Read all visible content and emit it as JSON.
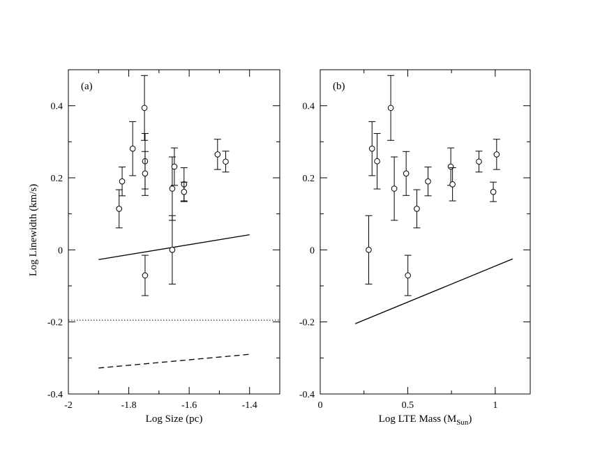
{
  "figure": {
    "ylabel": "Log Linewidth (km/s)"
  },
  "chart_data": [
    {
      "type": "scatter",
      "panel_label": "(a)",
      "xlabel": "Log Size (pc)",
      "ylabel": "Log Linewidth (km/s)",
      "xlim": [
        -2.0,
        -1.3
      ],
      "ylim": [
        -0.4,
        0.5
      ],
      "xticks": [
        -2.0,
        -1.8,
        -1.6,
        -1.4
      ],
      "xtick_labels": [
        "-2",
        "-1.8",
        "-1.6",
        "-1.4"
      ],
      "yticks": [
        -0.4,
        -0.2,
        0.0,
        0.2,
        0.4
      ],
      "ytick_labels": [
        "-0.4",
        "-0.2",
        "0",
        "0.2",
        "0.4"
      ],
      "grid": false,
      "points": [
        {
          "x": -1.832,
          "y": 0.114,
          "err": 0.053
        },
        {
          "x": -1.822,
          "y": 0.19,
          "err": 0.04
        },
        {
          "x": -1.787,
          "y": 0.281,
          "err": 0.075
        },
        {
          "x": -1.748,
          "y": 0.394,
          "err": 0.09
        },
        {
          "x": -1.746,
          "y": 0.246,
          "err": 0.077
        },
        {
          "x": -1.746,
          "y": 0.212,
          "err": 0.061
        },
        {
          "x": -1.746,
          "y": -0.071,
          "err": 0.056
        },
        {
          "x": -1.656,
          "y": 0.17,
          "err": 0.088
        },
        {
          "x": -1.649,
          "y": 0.231,
          "err": 0.052
        },
        {
          "x": -1.656,
          "y": 0.0,
          "err": 0.095
        },
        {
          "x": -1.617,
          "y": 0.182,
          "err": 0.046
        },
        {
          "x": -1.617,
          "y": 0.161,
          "err": 0.027
        },
        {
          "x": -1.506,
          "y": 0.265,
          "err": 0.042
        },
        {
          "x": -1.479,
          "y": 0.245,
          "err": 0.029
        }
      ],
      "lines": [
        {
          "name": "solid fit",
          "style": "solid",
          "x": [
            -1.9,
            -1.4
          ],
          "y": [
            -0.027,
            0.042
          ]
        },
        {
          "name": "dotted reference",
          "style": "dotted",
          "x": [
            -2.0,
            -1.3
          ],
          "y": [
            -0.195,
            -0.195
          ]
        },
        {
          "name": "dashed relation",
          "style": "dashed",
          "x": [
            -1.9,
            -1.4
          ],
          "y": [
            -0.328,
            -0.29
          ]
        }
      ]
    },
    {
      "type": "scatter",
      "panel_label": "(b)",
      "xlabel": "Log LTE Mass (M",
      "xlabel_subscript": "Sun",
      "xlabel_suffix": ")",
      "ylabel": "Log Linewidth (km/s)",
      "xlim": [
        0.0,
        1.2
      ],
      "ylim": [
        -0.4,
        0.5
      ],
      "xticks": [
        0.0,
        0.5,
        1.0
      ],
      "xtick_labels": [
        "0",
        "0.5",
        "1"
      ],
      "yticks": [
        -0.4,
        -0.2,
        0.0,
        0.2,
        0.4
      ],
      "ytick_labels": [
        "-0.4",
        "-0.2",
        "0",
        "0.2",
        "0.4"
      ],
      "grid": false,
      "points": [
        {
          "x": 0.277,
          "y": 0.0,
          "err": 0.095
        },
        {
          "x": 0.296,
          "y": 0.281,
          "err": 0.075
        },
        {
          "x": 0.325,
          "y": 0.246,
          "err": 0.077
        },
        {
          "x": 0.403,
          "y": 0.394,
          "err": 0.09
        },
        {
          "x": 0.423,
          "y": 0.17,
          "err": 0.088
        },
        {
          "x": 0.491,
          "y": 0.212,
          "err": 0.061
        },
        {
          "x": 0.501,
          "y": -0.071,
          "err": 0.056
        },
        {
          "x": 0.552,
          "y": 0.114,
          "err": 0.053
        },
        {
          "x": 0.616,
          "y": 0.19,
          "err": 0.04
        },
        {
          "x": 0.746,
          "y": 0.231,
          "err": 0.052
        },
        {
          "x": 0.756,
          "y": 0.182,
          "err": 0.046
        },
        {
          "x": 0.907,
          "y": 0.245,
          "err": 0.029
        },
        {
          "x": 0.989,
          "y": 0.161,
          "err": 0.027
        },
        {
          "x": 1.008,
          "y": 0.265,
          "err": 0.042
        }
      ],
      "lines": [
        {
          "name": "solid relation",
          "style": "solid",
          "x": [
            0.2,
            1.1
          ],
          "y": [
            -0.205,
            -0.025
          ]
        }
      ]
    }
  ]
}
